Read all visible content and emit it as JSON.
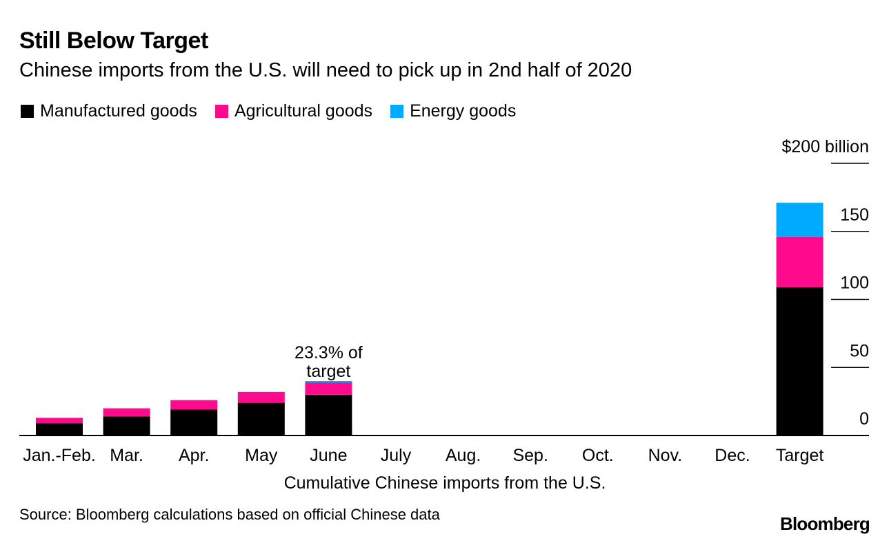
{
  "title": "Still Below Target",
  "subtitle": "Chinese imports from the U.S. will need to pick up in 2nd half of 2020",
  "source": "Source: Bloomberg calculations based on official Chinese data",
  "brand": "Bloomberg",
  "colors": {
    "manufactured": "#000000",
    "agricultural": "#ff0a8c",
    "energy": "#00aaff"
  },
  "chart_data": {
    "type": "bar",
    "stacked": true,
    "title": "Still Below Target",
    "subtitle": "Chinese imports from the U.S. will need to pick up in 2nd half of 2020",
    "xlabel": "Cumulative Chinese imports from the U.S.",
    "ylabel": "",
    "yunit_label": "$200 billion",
    "ylim": [
      0,
      200
    ],
    "yticks": [
      0,
      50,
      100,
      150,
      200
    ],
    "ytick_labels": [
      "0",
      "50",
      "100",
      "150",
      "$200 billion"
    ],
    "legend_position": "top-left",
    "categories": [
      "Jan.-Feb.",
      "Mar.",
      "Apr.",
      "May",
      "June",
      "July",
      "Aug.",
      "Sep.",
      "Oct.",
      "Nov.",
      "Dec.",
      "Target"
    ],
    "series": [
      {
        "name": "Manufactured goods",
        "key": "manufactured",
        "values": [
          9,
          14,
          19,
          24,
          30,
          null,
          null,
          null,
          null,
          null,
          null,
          109
        ]
      },
      {
        "name": "Agricultural goods",
        "key": "agricultural",
        "values": [
          4,
          6,
          7,
          8,
          9,
          null,
          null,
          null,
          null,
          null,
          null,
          37
        ]
      },
      {
        "name": "Energy goods",
        "key": "energy",
        "values": [
          0,
          0,
          0,
          0,
          1,
          null,
          null,
          null,
          null,
          null,
          null,
          25
        ]
      }
    ],
    "annotations": [
      {
        "category": "June",
        "lines": [
          "23.3% of",
          "target"
        ]
      }
    ]
  }
}
